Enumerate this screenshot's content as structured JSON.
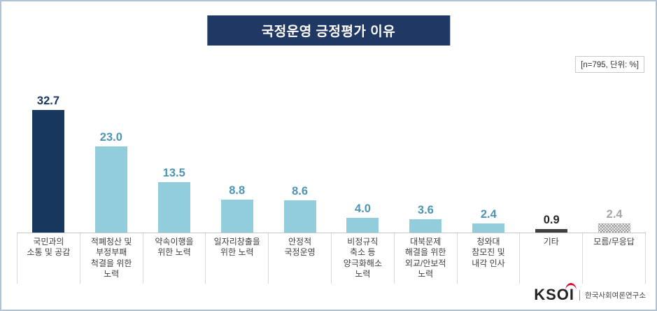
{
  "header": {
    "title": "국정운영 긍정평가 이유",
    "note": "[n=795, 단위: %]"
  },
  "chart_data": {
    "type": "bar",
    "title": "국정운영 긍정평가 이유",
    "note": "[n=795, 단위: %]",
    "sample_n": 795,
    "unit": "%",
    "grid": false,
    "legend": "none",
    "ylim": [
      0,
      35
    ],
    "categories": [
      "국민과의\n소통 및 공감",
      "적폐청산 및\n부정부패\n척결을 위한\n노력",
      "약속이행을\n위한 노력",
      "일자리창출을\n위한 노력",
      "안정적\n국정운영",
      "비정규직\n축소 등\n양극화해소\n노력",
      "대북문제\n해결을 위한\n외교/안보적\n노력",
      "청와대\n참모진 및\n내각 인사",
      "기타",
      "모름/무응답"
    ],
    "values": [
      32.7,
      23.0,
      13.5,
      8.8,
      8.6,
      4.0,
      3.6,
      2.4,
      0.9,
      2.4
    ],
    "value_labels": [
      "32.7",
      "23.0",
      "13.5",
      "8.8",
      "8.6",
      "4.0",
      "3.6",
      "2.4",
      "0.9",
      "2.4"
    ],
    "bar_styles": [
      "navy",
      "teal",
      "teal",
      "teal",
      "teal",
      "teal",
      "teal",
      "teal",
      "darkgray",
      "hatch"
    ]
  },
  "colors": {
    "border": "#AFC3D6",
    "title_bg": "#1F3864",
    "navy": "#17375E",
    "teal": "#92CDDC",
    "teal_label": "#4E94B5",
    "darkgray": "#3F3F3F",
    "hatch_fg": "#9A9A9A",
    "hatch_label": "#A6A6A6",
    "axis": "#C6C6C6"
  },
  "footer": {
    "logo_text": "KSOI",
    "logo_subtext": "한국사회여론연구소"
  }
}
